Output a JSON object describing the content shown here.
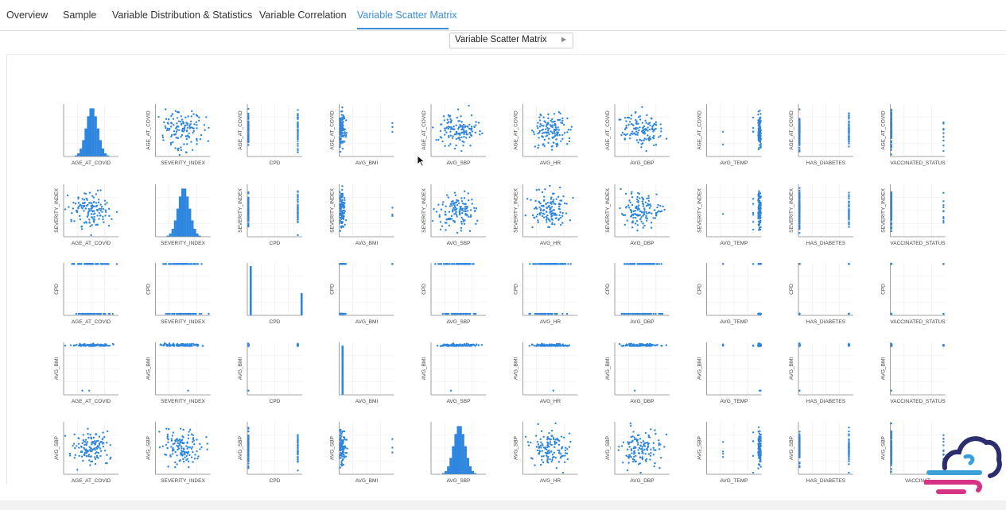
{
  "tabs": [
    {
      "label": "Overview",
      "active": false
    },
    {
      "label": "Sample",
      "active": false
    },
    {
      "label": "Variable Distribution & Statistics",
      "active": false
    },
    {
      "label": "Variable Correlation",
      "active": false
    },
    {
      "label": "Variable Scatter Matrix",
      "active": true
    }
  ],
  "view_selector": {
    "label": "Variable Scatter Matrix"
  },
  "accent_color": "#3b8fd9",
  "point_color": "#2e86de",
  "chart_data": {
    "type": "scatter",
    "columns": [
      "AGE_AT_COVID",
      "SEVERITY_INDEX",
      "CPD",
      "AVG_BMI",
      "AVG_SBP",
      "AVG_HR",
      "AVG_DBP",
      "AVG_TEMP",
      "HAS_DIABETES",
      "VACCINATED_STATUS"
    ],
    "x_labels": [
      "AGE_AT_COVID",
      "SEVERITY_INDEX",
      "CPD",
      "AVG_BMI",
      "AVG_SBP",
      "AVG_HR",
      "AVG_DBP",
      "AVG_TEMP",
      "HAS_DIABETES",
      "VACCINATED_STATUS"
    ],
    "last_row_clipped_x_label": "VACCINAT",
    "rows": [
      "AGE_AT_COVID",
      "SEVERITY_INDEX",
      "CPD",
      "AVG_BMI",
      "AVG_SBP"
    ],
    "diagonal": "histogram",
    "grid": true
  }
}
